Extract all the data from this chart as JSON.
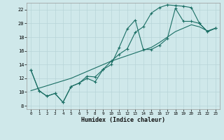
{
  "title": "",
  "xlabel": "Humidex (Indice chaleur)",
  "bg_color": "#cfe8ea",
  "grid_color": "#b8d4d8",
  "line_color": "#1a6e64",
  "xlim": [
    -0.5,
    23.5
  ],
  "ylim": [
    7.5,
    23.0
  ],
  "xticks": [
    0,
    1,
    2,
    3,
    4,
    5,
    6,
    7,
    8,
    9,
    10,
    11,
    12,
    13,
    14,
    15,
    16,
    17,
    18,
    19,
    20,
    21,
    22,
    23
  ],
  "yticks": [
    8,
    10,
    12,
    14,
    16,
    18,
    20,
    22
  ],
  "line1_x": [
    0,
    1,
    2,
    3,
    4,
    5,
    6,
    7,
    8,
    9,
    10,
    11,
    12,
    13,
    14,
    15,
    16,
    17,
    18,
    19,
    20,
    21,
    22,
    23
  ],
  "line1_y": [
    13.2,
    10.2,
    9.4,
    9.8,
    8.5,
    10.8,
    11.3,
    12.0,
    11.5,
    13.3,
    14.5,
    15.5,
    16.3,
    18.7,
    19.5,
    21.5,
    22.3,
    22.7,
    22.6,
    22.5,
    22.3,
    20.0,
    18.8,
    19.3
  ],
  "line2_x": [
    0,
    1,
    2,
    3,
    4,
    5,
    6,
    7,
    8,
    9,
    10,
    11,
    12,
    13,
    14,
    15,
    16,
    17,
    18,
    19,
    20,
    21,
    22,
    23
  ],
  "line2_y": [
    13.2,
    10.2,
    9.4,
    9.8,
    8.5,
    10.8,
    11.3,
    12.3,
    12.2,
    13.3,
    14.0,
    16.5,
    19.2,
    20.5,
    16.2,
    16.2,
    16.8,
    17.8,
    22.2,
    20.3,
    20.3,
    20.0,
    18.8,
    19.3
  ],
  "line3_x": [
    0,
    5,
    10,
    15,
    16,
    17,
    18,
    19,
    20,
    21,
    22,
    23
  ],
  "line3_y": [
    10.2,
    12.0,
    14.5,
    16.5,
    17.2,
    18.0,
    18.8,
    19.3,
    19.8,
    19.5,
    18.9,
    19.3
  ]
}
